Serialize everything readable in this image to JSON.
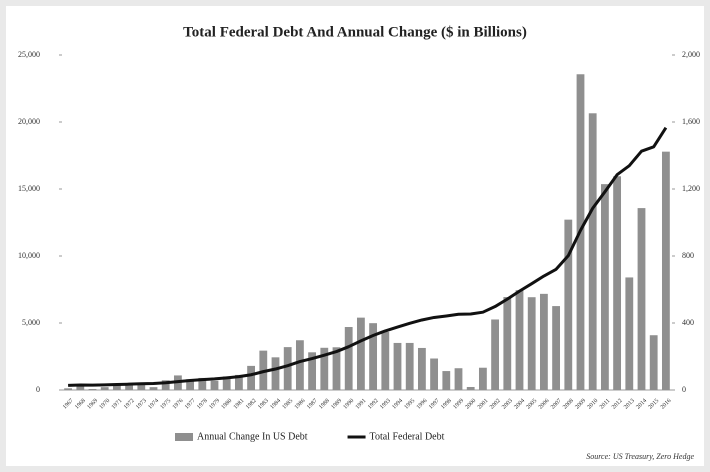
{
  "chart_data": {
    "type": "bar-line",
    "title": "Total Federal Debt And Annual Change ($ in Billions)",
    "source": "Source: US Treasury, Zero Hedge",
    "categories": [
      "1967",
      "1968",
      "1969",
      "1970",
      "1971",
      "1972",
      "1973",
      "1974",
      "1975",
      "1976",
      "1977",
      "1978",
      "1979",
      "1980",
      "1981",
      "1982",
      "1983",
      "1984",
      "1985",
      "1986",
      "1987",
      "1988",
      "1989",
      "1990",
      "1991",
      "1992",
      "1993",
      "1994",
      "1995",
      "1996",
      "1997",
      "1998",
      "1999",
      "2000",
      "2001",
      "2002",
      "2003",
      "2004",
      "2005",
      "2006",
      "2007",
      "2008",
      "2009",
      "2010",
      "2011",
      "2012",
      "2013",
      "2014",
      "2015",
      "2016"
    ],
    "series": [
      {
        "name": "Annual Change In US Debt",
        "color": "#8f8f8f",
        "axis": "y2",
        "kind": "bar",
        "values": [
          10,
          21,
          6,
          17,
          27,
          29,
          30,
          17,
          58,
          87,
          64,
          72,
          55,
          81,
          90,
          144,
          235,
          195,
          256,
          297,
          225,
          252,
          255,
          376,
          432,
          399,
          347,
          281,
          281,
          251,
          188,
          113,
          130,
          18,
          133,
          421,
          555,
          596,
          554,
          574,
          501,
          1017,
          1885,
          1652,
          1229,
          1276,
          672,
          1086,
          327,
          1423
        ]
      },
      {
        "name": "Total Federal Debt",
        "color": "#111111",
        "kind": "line",
        "values": [
          341,
          370,
          366,
          381,
          408,
          436,
          466,
          484,
          542,
          629,
          706,
          777,
          829,
          909,
          995,
          1137,
          1372,
          1565,
          1817,
          2120,
          2346,
          2601,
          2868,
          3233,
          3665,
          4065,
          4411,
          4693,
          4974,
          5225,
          5413,
          5526,
          5656,
          5674,
          5807,
          6228,
          6783,
          7379,
          7933,
          8507,
          9008,
          10025,
          11910,
          13562,
          14790,
          16066,
          16738,
          17824,
          18151,
          19573
        ]
      }
    ],
    "ylim": [
      0,
      25000
    ],
    "yticks": [
      0,
      {
        "value": 5000,
        "label": "5,000"
      },
      {
        "value": 10000,
        "label": "10,000"
      },
      {
        "value": 15000,
        "label": "15,000"
      },
      {
        "value": 20000,
        "label": "20,000"
      },
      {
        "value": 25000,
        "label": "25,000"
      }
    ],
    "y2lim": [
      0,
      2000
    ],
    "y2ticks": [
      0,
      400,
      800,
      {
        "value": 1200,
        "label": "1,200"
      },
      {
        "value": 1600,
        "label": "1,600"
      },
      {
        "value": 2000,
        "label": "2,000"
      }
    ],
    "legend": "bottom"
  }
}
